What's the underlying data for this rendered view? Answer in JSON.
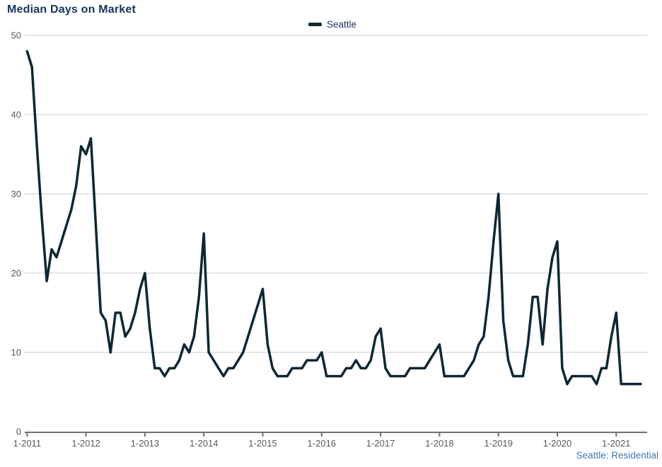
{
  "header": {
    "title": "Median Days on Market"
  },
  "legend": {
    "items": [
      {
        "label": "Seattle",
        "color": "#0f2733"
      }
    ]
  },
  "footer": {
    "link_label": "Seattle: Residential"
  },
  "style": {
    "background": "#ffffff",
    "title_color": "#17365d",
    "series_color": "#0f2733",
    "grid_color": "#cbcbcb",
    "axis_color": "#707070",
    "tick_label_color": "#595959",
    "link_color": "#4576b5"
  },
  "chart_data": {
    "type": "line",
    "title": "Median Days on Market",
    "xlabel": "",
    "ylabel": "",
    "ylim": [
      0,
      50
    ],
    "y_ticks": [
      0,
      10,
      20,
      30,
      40,
      50
    ],
    "grid": "horizontal",
    "legend_position": "top-center",
    "x_frequency": "monthly",
    "x_start": "1-2011",
    "x_end": "6-2021",
    "x_tick_labels": [
      "1-2011",
      "1-2012",
      "1-2013",
      "1-2014",
      "1-2015",
      "1-2016",
      "1-2017",
      "1-2018",
      "1-2019",
      "1-2020",
      "1-2021"
    ],
    "months_per_tick": 12,
    "series": [
      {
        "name": "Seattle",
        "color": "#0f2733",
        "start": "1-2011",
        "values_by_year": {
          "2011": [
            48,
            46,
            36,
            27,
            19,
            23,
            22,
            24,
            26,
            28,
            31,
            36
          ],
          "2012": [
            35,
            37,
            26,
            15,
            14,
            10,
            15,
            15,
            12,
            13,
            15,
            18
          ],
          "2013": [
            20,
            13,
            8,
            8,
            7,
            8,
            8,
            9,
            11,
            10,
            12,
            17
          ],
          "2014": [
            25,
            10,
            9,
            8,
            7,
            8,
            8,
            9,
            10,
            12,
            14,
            16
          ],
          "2015": [
            18,
            11,
            8,
            7,
            7,
            7,
            8,
            8,
            8,
            9,
            9,
            9
          ],
          "2016": [
            10,
            7,
            7,
            7,
            7,
            8,
            8,
            9,
            8,
            8,
            9,
            12
          ],
          "2017": [
            13,
            8,
            7,
            7,
            7,
            7,
            8,
            8,
            8,
            8,
            9,
            10
          ],
          "2018": [
            11,
            7,
            7,
            7,
            7,
            7,
            8,
            9,
            11,
            12,
            17,
            24
          ],
          "2019": [
            30,
            14,
            9,
            7,
            7,
            7,
            11,
            17,
            17,
            11,
            18,
            22
          ],
          "2020": [
            24,
            8,
            6,
            7,
            7,
            7,
            7,
            7,
            6,
            8,
            8,
            12
          ],
          "2021": [
            15,
            6,
            6,
            6,
            6,
            6
          ]
        },
        "values": [
          48,
          46,
          36,
          27,
          19,
          23,
          22,
          24,
          26,
          28,
          31,
          36,
          35,
          37,
          26,
          15,
          14,
          10,
          15,
          15,
          12,
          13,
          15,
          18,
          20,
          13,
          8,
          8,
          7,
          8,
          8,
          9,
          11,
          10,
          12,
          17,
          25,
          10,
          9,
          8,
          7,
          8,
          8,
          9,
          10,
          12,
          14,
          16,
          18,
          11,
          8,
          7,
          7,
          7,
          8,
          8,
          8,
          9,
          9,
          9,
          10,
          7,
          7,
          7,
          7,
          8,
          8,
          9,
          8,
          8,
          9,
          12,
          13,
          8,
          7,
          7,
          7,
          7,
          8,
          8,
          8,
          8,
          9,
          10,
          11,
          7,
          7,
          7,
          7,
          7,
          8,
          9,
          11,
          12,
          17,
          24,
          30,
          14,
          9,
          7,
          7,
          7,
          11,
          17,
          17,
          11,
          18,
          22,
          24,
          8,
          6,
          7,
          7,
          7,
          7,
          7,
          6,
          8,
          8,
          12,
          15,
          6,
          6,
          6,
          6,
          6
        ]
      }
    ]
  }
}
